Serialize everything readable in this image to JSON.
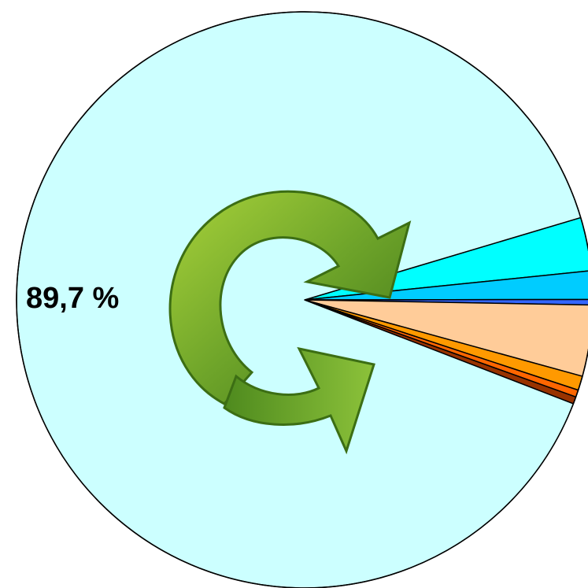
{
  "chart_data": {
    "type": "pie",
    "title": "",
    "start_angle_deg": -16.6,
    "direction": "clockwise",
    "slices": [
      {
        "value": 3.0,
        "color": "#00FFFF"
      },
      {
        "value": 1.6,
        "color": "#00CCFF"
      },
      {
        "value": 0.3,
        "color": "#3366FF"
      },
      {
        "value": 4.0,
        "color": "#FFCC99"
      },
      {
        "value": 0.8,
        "color": "#FF9900"
      },
      {
        "value": 0.4,
        "color": "#FF6600"
      },
      {
        "value": 0.4,
        "color": "#993300"
      },
      {
        "value": 89.7,
        "color": "#CCFFFF",
        "label": "89,7 %"
      }
    ],
    "data_labels": [
      {
        "slice_index": 7,
        "text": "89,7 %"
      }
    ]
  },
  "decoration": {
    "center_icon": "recycle-arrows-icon",
    "icon_color": "#5E9A1E"
  }
}
